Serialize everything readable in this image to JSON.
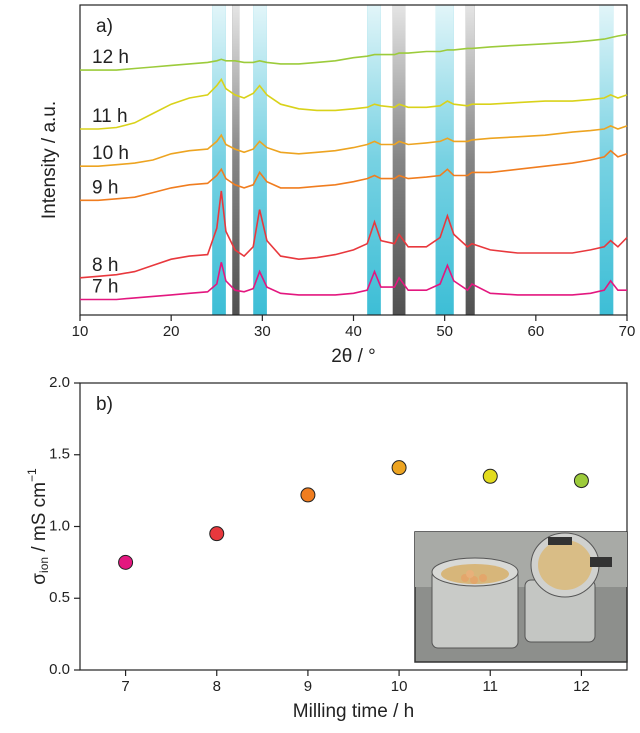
{
  "chart_data": [
    {
      "type": "line",
      "panel": "a)",
      "xlabel": "2θ / °",
      "ylabel": "Intensity / a.u.",
      "xlim": [
        10,
        70
      ],
      "xticks": [
        10,
        20,
        30,
        40,
        50,
        60,
        70
      ],
      "ylim": [
        0,
        100
      ],
      "highlights": [
        {
          "xmin": 24.5,
          "xmax": 26,
          "color": "#1bb3cf"
        },
        {
          "xmin": 29,
          "xmax": 30.5,
          "color": "#1bb3cf"
        },
        {
          "xmin": 41.5,
          "xmax": 43,
          "color": "#1bb3cf"
        },
        {
          "xmin": 49,
          "xmax": 51,
          "color": "#1bb3cf"
        },
        {
          "xmin": 67,
          "xmax": 68.5,
          "color": "#1bb3cf"
        },
        {
          "xmin": 26.7,
          "xmax": 27.5,
          "color": "#333333"
        },
        {
          "xmin": 44.3,
          "xmax": 45.7,
          "color": "#333333"
        },
        {
          "xmin": 52.3,
          "xmax": 53.3,
          "color": "#333333"
        }
      ],
      "x": [
        10,
        12,
        14,
        16,
        18,
        20,
        22,
        24,
        25,
        25.5,
        26,
        27,
        28,
        29,
        29.7,
        30.5,
        32,
        34,
        36,
        38,
        40,
        41.5,
        42.3,
        43,
        44.5,
        45,
        46,
        48,
        49.5,
        50.3,
        51,
        52.5,
        53,
        55,
        58,
        61,
        64,
        66,
        67.5,
        68.2,
        69,
        70
      ],
      "series": [
        {
          "name": "7 h",
          "color": "#e3177f",
          "values": [
            5,
            5,
            5,
            5.5,
            6,
            6.5,
            7,
            7.5,
            10,
            17,
            11,
            8,
            7.5,
            8.5,
            14,
            9,
            7,
            6.5,
            6.5,
            6.5,
            7,
            8,
            14,
            9,
            9,
            12,
            8,
            8,
            10,
            16,
            11,
            8,
            10,
            7,
            6.5,
            6.5,
            6.5,
            7,
            8,
            11,
            8,
            8
          ]
        },
        {
          "name": "8 h",
          "color": "#e8383d",
          "values": [
            12,
            12.5,
            13,
            14,
            16,
            18,
            19,
            19.5,
            28,
            40,
            27,
            21,
            19,
            22,
            34,
            24,
            19,
            18,
            18.5,
            19.5,
            21,
            23,
            30,
            24,
            23,
            26,
            22,
            22,
            25,
            32,
            26,
            22,
            23,
            21,
            20,
            20,
            20,
            21,
            22,
            24,
            22,
            25
          ]
        },
        {
          "name": "9 h",
          "color": "#f07d1f",
          "values": [
            37,
            37,
            37.5,
            38,
            39.5,
            41,
            42,
            42.5,
            45,
            47,
            44,
            42,
            41,
            42,
            46,
            43,
            41,
            41,
            41.5,
            42,
            43,
            44,
            45,
            44,
            44,
            45,
            44,
            44.5,
            45,
            47,
            45,
            45,
            46,
            46,
            47,
            48,
            49,
            50,
            51,
            53,
            51,
            52
          ]
        },
        {
          "name": "10 h",
          "color": "#eda421",
          "values": [
            48,
            48,
            48.5,
            49,
            50,
            52,
            53,
            53.5,
            56,
            58,
            55,
            53.5,
            52.5,
            53.5,
            56,
            54,
            52.5,
            52,
            52.5,
            53,
            54,
            55,
            56,
            55,
            55,
            56,
            55,
            55.5,
            56,
            57,
            56,
            56,
            56.5,
            57,
            57.5,
            58,
            59,
            59.5,
            60,
            61,
            60,
            61
          ]
        },
        {
          "name": "11 h",
          "color": "#d9d21a",
          "values": [
            60,
            60,
            60.5,
            62,
            65,
            68,
            70,
            71,
            74,
            76,
            73,
            71,
            70,
            71.5,
            74,
            71,
            68,
            66.5,
            66,
            66,
            66.5,
            67,
            68,
            67.5,
            67,
            68,
            67,
            67,
            67.5,
            69,
            68,
            67.5,
            68,
            68,
            68.5,
            69,
            69,
            69.5,
            70,
            71,
            70,
            71
          ]
        },
        {
          "name": "12 h",
          "color": "#9ccb3b",
          "values": [
            79,
            79,
            79,
            79.5,
            80,
            80.5,
            81,
            81.5,
            82,
            82.5,
            82,
            82,
            81.5,
            81.5,
            82,
            81.5,
            81,
            81,
            81.5,
            82,
            83,
            83.5,
            84,
            84,
            84,
            84.5,
            84.5,
            85,
            85,
            85.5,
            85.5,
            86,
            86,
            86.5,
            87,
            87.5,
            88,
            88.5,
            89,
            89.5,
            90,
            90.5
          ]
        }
      ]
    },
    {
      "type": "scatter",
      "panel": "b)",
      "xlabel": "Milling time / h",
      "ylabel": {
        "symbol": "σ",
        "subscript": "ion",
        "unit": " / mS cm",
        "superscript": "−1"
      },
      "xlim": [
        6.5,
        12.5
      ],
      "xticks": [
        7,
        8,
        9,
        10,
        11,
        12
      ],
      "ylim": [
        0,
        2
      ],
      "yticks": [
        {
          "value": 0,
          "label": "0.0"
        },
        {
          "value": 0.5,
          "label": "0.5"
        },
        {
          "value": 1,
          "label": "1.0"
        },
        {
          "value": 1.5,
          "label": "1.5"
        },
        {
          "value": 2,
          "label": "2.0"
        }
      ],
      "x": [
        7,
        8,
        9,
        10,
        11,
        12
      ],
      "values": [
        0.75,
        0.95,
        1.22,
        1.41,
        1.35,
        1.32
      ],
      "colors": [
        "#e3177f",
        "#e8383d",
        "#f07d1f",
        "#eda421",
        "#e3dc1e",
        "#9ccb3b"
      ]
    }
  ]
}
